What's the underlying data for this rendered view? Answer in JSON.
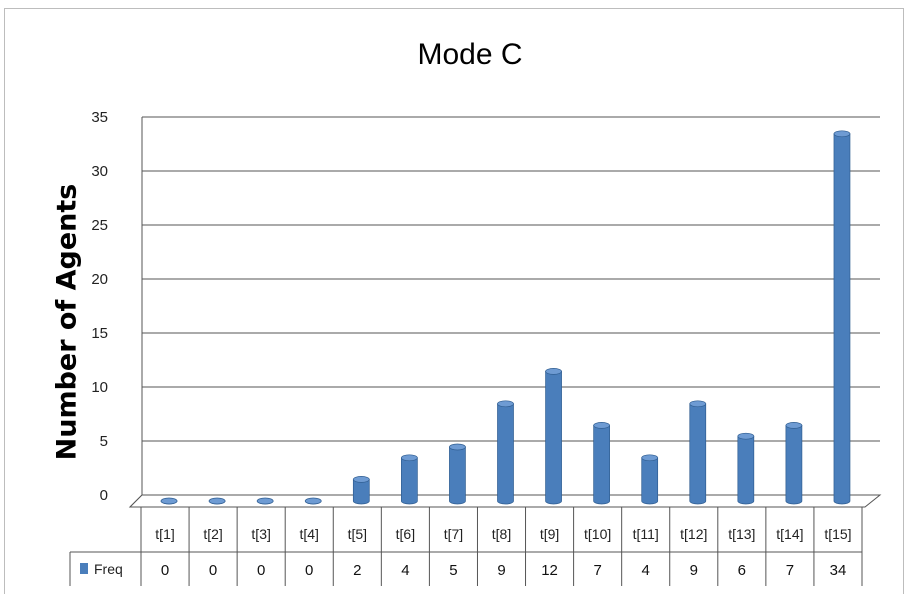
{
  "chart_data": {
    "type": "bar",
    "title": "Mode C",
    "xlabel": "",
    "ylabel": "Number of Agents",
    "ylim": [
      0,
      35
    ],
    "yticks": [
      0,
      5,
      10,
      15,
      20,
      25,
      30,
      35
    ],
    "grid": true,
    "legend_placement": "data-table-left",
    "categories": [
      "t[1]",
      "t[2]",
      "t[3]",
      "t[4]",
      "t[5]",
      "t[6]",
      "t[7]",
      "t[8]",
      "t[9]",
      "t[10]",
      "t[11]",
      "t[12]",
      "t[13]",
      "t[14]",
      "t[15]"
    ],
    "series": [
      {
        "name": "Freq",
        "color": "#4a7ebb",
        "values": [
          0,
          0,
          0,
          0,
          2,
          4,
          5,
          9,
          12,
          7,
          4,
          9,
          6,
          7,
          34
        ]
      }
    ]
  }
}
